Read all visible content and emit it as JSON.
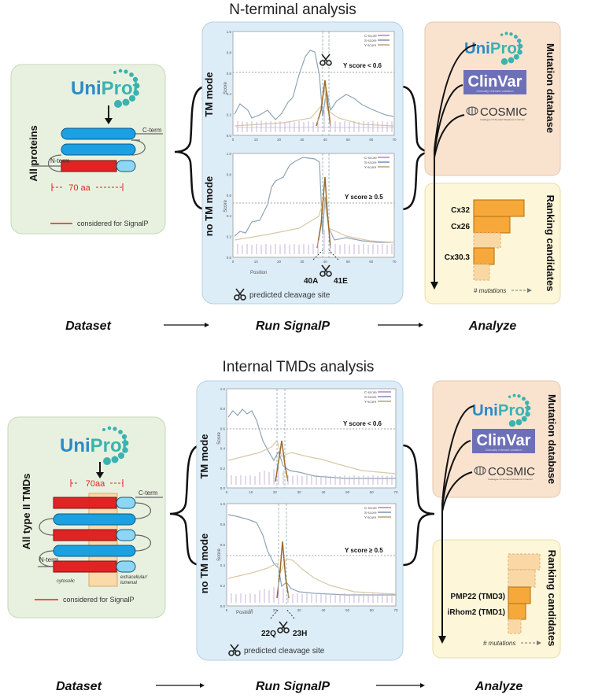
{
  "top": {
    "title": "N-terminal analysis",
    "dataset": {
      "label": "All proteins",
      "cterm": "C-term",
      "nterm": "N-term",
      "length": "70 aa",
      "legend": "considered for SignalP"
    },
    "signalp": {
      "tm_mode": "TM mode",
      "tm_threshold": "Y score < 0.6",
      "notm_mode": "no TM mode",
      "notm_threshold": "Y score ≥ 0.5",
      "ylabel": "Score",
      "xlabel": "Position",
      "legend_c": "C-score",
      "legend_s": "S-score",
      "legend_y": "Y-score",
      "cleave_left": "40A",
      "cleave_right": "41E",
      "footer": "predicted cleavage site"
    },
    "mutation_db": {
      "title": "Mutation database",
      "uniprot": "UniProt",
      "clinvar": "ClinVar",
      "clinvar_sub": "Clinically relevant variation",
      "cosmic": "COSMIC",
      "cosmic_sub": "Catalogue Of Somatic Mutations In Cancer"
    },
    "ranking": {
      "title": "Ranking candidates",
      "item1": "Cx32",
      "item2": "Cx26",
      "item3": "Cx30.3",
      "xaxis": "# mutations"
    },
    "steps": {
      "dataset": "Dataset",
      "run": "Run SignalP",
      "analyze": "Analyze"
    }
  },
  "bottom": {
    "title": "Internal TMDs analysis",
    "dataset": {
      "label": "All type II TMDs",
      "cterm": "C-term",
      "nterm": "N-term",
      "length": "70aa",
      "cytosolic": "cytosolic",
      "extracellular": "extracellular/",
      "lumenal": "lumenal",
      "legend": "considered for SignalP"
    },
    "signalp": {
      "tm_mode": "TM mode",
      "tm_threshold": "Y score < 0.6",
      "notm_mode": "no TM mode",
      "notm_threshold": "Y score ≥ 0.5",
      "ylabel": "Score",
      "xlabel": "Position",
      "legend_c": "C-score",
      "legend_s": "S-score",
      "legend_y": "Y-score",
      "cleave_left": "22Q",
      "cleave_right": "23H",
      "footer": "predicted cleavage site"
    },
    "mutation_db": {
      "title": "Mutation database",
      "uniprot": "UniProt",
      "clinvar": "ClinVar",
      "clinvar_sub": "Clinically relevant variation",
      "cosmic": "COSMIC",
      "cosmic_sub": "Catalogue Of Somatic Mutations In Cancer"
    },
    "ranking": {
      "title": "Ranking candidates",
      "item1": "PMP22 (TMD3)",
      "item2": "iRhom2 (TMD1)",
      "xaxis": "# mutations"
    },
    "steps": {
      "dataset": "Dataset",
      "run": "Run SignalP",
      "analyze": "Analyze"
    }
  },
  "axis": {
    "x_ticks": [
      "0",
      "10",
      "20",
      "30",
      "40",
      "50",
      "60",
      "70"
    ],
    "y_ticks": [
      "0.0",
      "0.2",
      "0.4",
      "0.6",
      "0.8",
      "1.0"
    ]
  },
  "colors": {
    "green_panel": "#e8f1df",
    "blue_panel": "#ddedf8",
    "peach_panel": "#f9e3cf",
    "yellow_panel": "#fdf6d8",
    "bar_orange": "#f6a93a",
    "tm_blue": "#1ba0e2",
    "tm_red": "#e02424",
    "clinvar": "#6d6fb7",
    "uniprot_blue": "#2c8ac7",
    "uniprot_teal": "#3ab3b0"
  }
}
